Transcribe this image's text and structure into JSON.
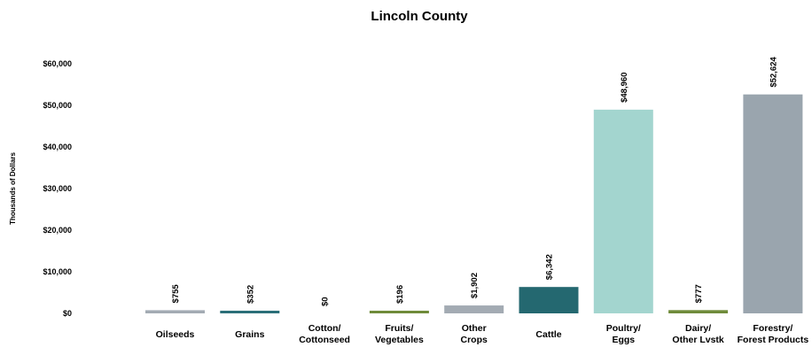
{
  "chart_data": {
    "type": "bar",
    "title": "Lincoln County",
    "ylabel": "Thousands of Dollars",
    "xlabel": "",
    "ylim": [
      0,
      60000
    ],
    "yticks": [
      0,
      10000,
      20000,
      30000,
      40000,
      50000,
      60000
    ],
    "ytick_labels": [
      "$0",
      "$10,000",
      "$20,000",
      "$30,000",
      "$40,000",
      "$50,000",
      "$60,000"
    ],
    "grid": false,
    "legend": "none",
    "categories": [
      [
        "Oilseeds"
      ],
      [
        "Grains"
      ],
      [
        "Cotton/",
        "Cottonseed"
      ],
      [
        "Fruits/",
        "Vegetables"
      ],
      [
        "Other",
        "Crops"
      ],
      [
        "Cattle"
      ],
      [
        "Poultry/",
        "Eggs"
      ],
      [
        "Dairy/",
        "Other Lvstk"
      ],
      [
        "Forestry/",
        "Forest Products"
      ]
    ],
    "values": [
      755,
      352,
      0,
      196,
      1902,
      6342,
      48960,
      777,
      52624
    ],
    "data_labels": [
      "$755",
      "$352",
      "$0",
      "$196",
      "$1,902",
      "$6,342",
      "$48,960",
      "$777",
      "$52,624"
    ],
    "colors": [
      "#a3abb3",
      "#2b6f78",
      "#9aa3ab",
      "#6f8b3a",
      "#a3abb3",
      "#246870",
      "#a3d5cf",
      "#6f8b3a",
      "#9aa5ae"
    ]
  }
}
